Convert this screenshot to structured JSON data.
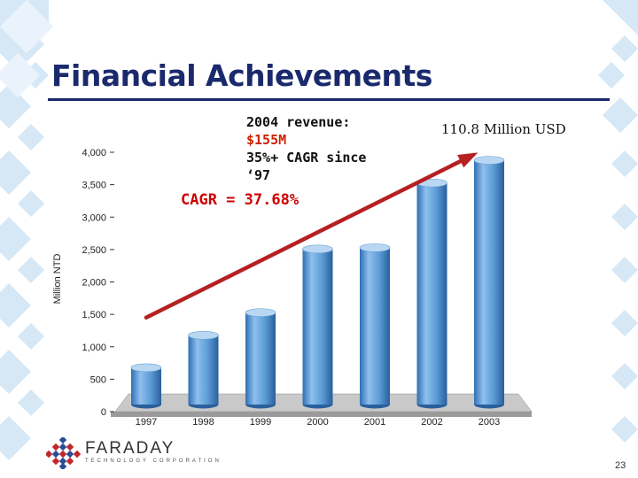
{
  "slide": {
    "title": "Financial Achievements",
    "page_number": "23"
  },
  "annotation": {
    "line1": "2004 revenue:",
    "line2": "$155M",
    "line3": "35%+ CAGR since",
    "line4": "‘97",
    "cagr": "CAGR = 37.68%",
    "usd": "110.8 Million USD"
  },
  "logo": {
    "name": "FARADAY",
    "tagline": "TECHNOLOGY CORPORATION"
  },
  "colors": {
    "title": "#1a2a6c",
    "bar": "#5b9bd5",
    "trend_arrow": "#b52020",
    "highlight_text": "#cc2200",
    "background_pattern": "#d6e8f6"
  },
  "chart_data": {
    "type": "bar",
    "style": "3d-cylinder",
    "categories": [
      "1997",
      "1998",
      "1999",
      "2000",
      "2001",
      "2002",
      "2003"
    ],
    "values": [
      650,
      1150,
      1500,
      2480,
      2500,
      3500,
      3850
    ],
    "ylabel": "Million NTD",
    "ylim": [
      0,
      4000
    ],
    "yticks": [
      "0",
      "500",
      "1,000",
      "1,500",
      "2,000",
      "2,500",
      "3,000",
      "3,500",
      "4,000"
    ],
    "grid": false,
    "trend_arrow": {
      "from_value": 1450,
      "to_value": 4000
    }
  }
}
